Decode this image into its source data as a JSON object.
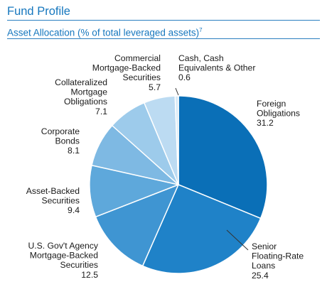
{
  "header": {
    "title": "Fund Profile",
    "subtitle": "Asset Allocation (% of total leveraged assets)",
    "footnote": "7"
  },
  "colors": {
    "accent": "#1677be",
    "rule": "#2a7fc0",
    "slice_border": "#ffffff"
  },
  "chart_data": {
    "type": "pie",
    "start_angle_deg": 0,
    "direction": "clockwise",
    "slices": [
      {
        "label_lines": [
          "Foreign",
          "Obligations"
        ],
        "value": 31.2,
        "value_text": "31.2",
        "color": "#0a6fb7"
      },
      {
        "label_lines": [
          "Senior",
          "Floating-Rate",
          "Loans"
        ],
        "value": 25.4,
        "value_text": "25.4",
        "color": "#1f82c8"
      },
      {
        "label_lines": [
          "U.S. Gov't Agency",
          "Mortgage-Backed",
          "Securities"
        ],
        "value": 12.5,
        "value_text": "12.5",
        "color": "#3f95d2"
      },
      {
        "label_lines": [
          "Asset-Backed",
          "Securities"
        ],
        "value": 9.4,
        "value_text": "9.4",
        "color": "#5ea8db"
      },
      {
        "label_lines": [
          "Corporate",
          "Bonds"
        ],
        "value": 8.1,
        "value_text": "8.1",
        "color": "#7eb9e3"
      },
      {
        "label_lines": [
          "Collateralized",
          "Mortgage",
          "Obligations"
        ],
        "value": 7.1,
        "value_text": "7.1",
        "color": "#9dcbeb"
      },
      {
        "label_lines": [
          "Commercial",
          "Mortgage-Backed",
          "Securities"
        ],
        "value": 5.7,
        "value_text": "5.7",
        "color": "#bcdbf2"
      },
      {
        "label_lines": [
          "Cash, Cash",
          "Equivalents & Other"
        ],
        "value": 0.6,
        "value_text": "0.6",
        "color": "#d8eaf7"
      }
    ]
  }
}
